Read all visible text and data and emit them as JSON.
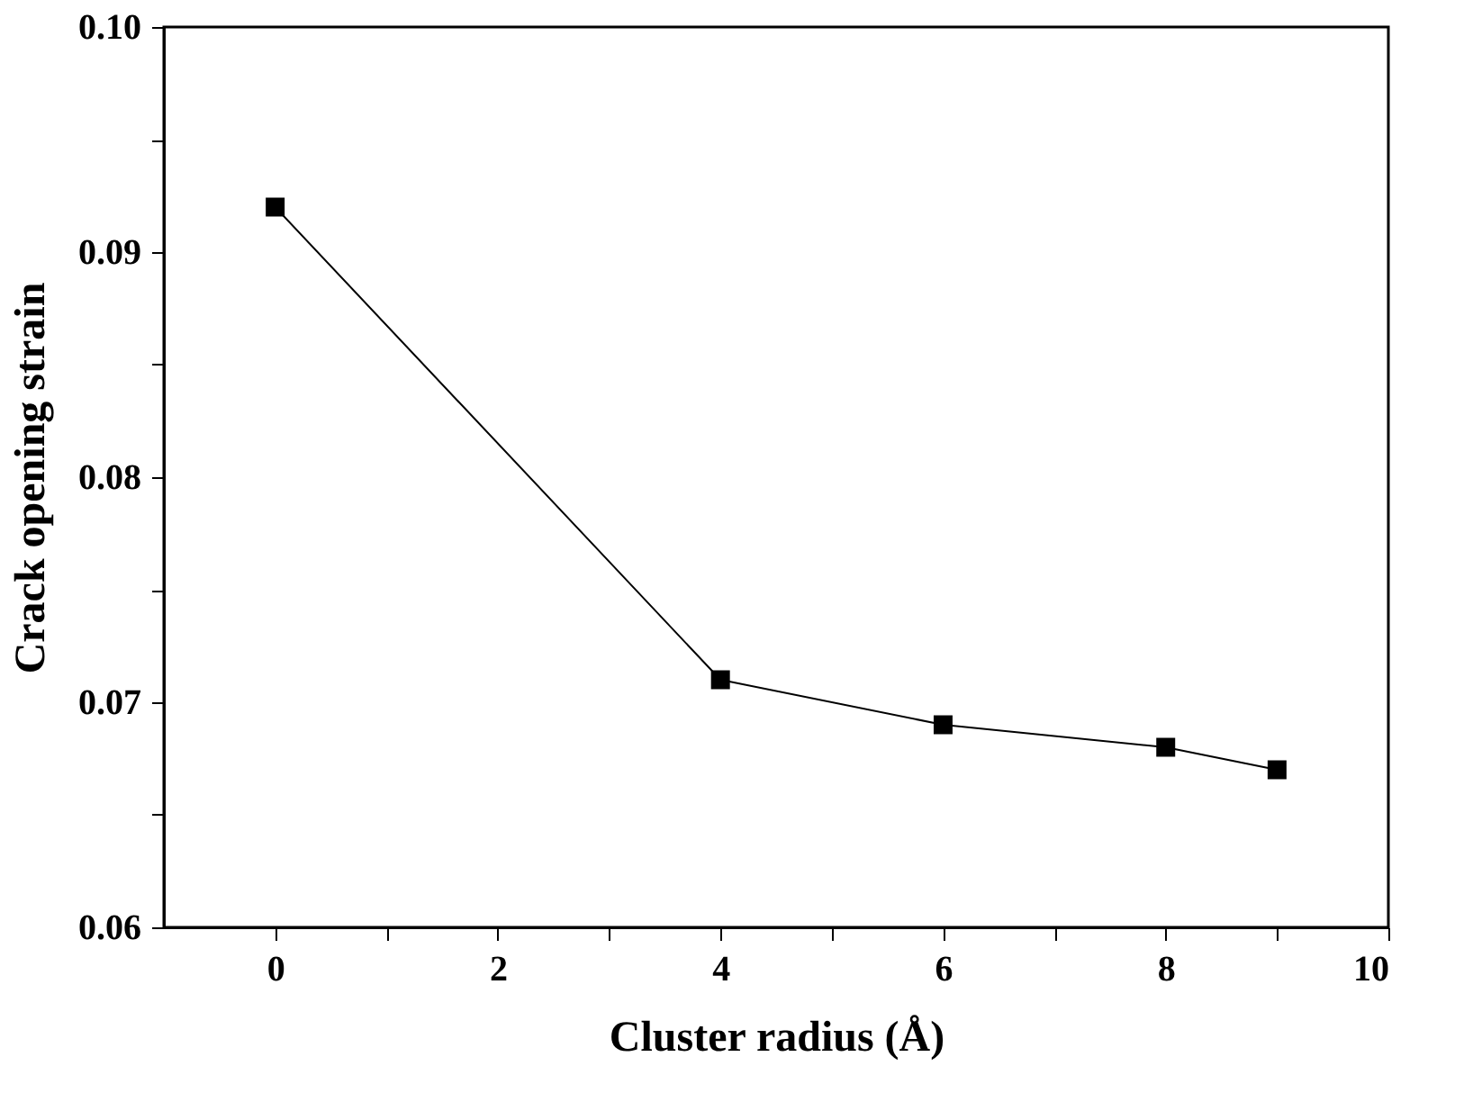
{
  "chart_data": {
    "type": "line",
    "xlabel": "Cluster radius (Å)",
    "ylabel": "Crack opening strain",
    "x": [
      0,
      4,
      6,
      8,
      9
    ],
    "series": [
      {
        "color": "#000000",
        "values": [
          0.092,
          0.071,
          0.069,
          0.068,
          0.067
        ]
      }
    ],
    "xlim": [
      -1,
      10
    ],
    "xticks": [
      0,
      {
        "value": 1,
        "label": null
      },
      2,
      {
        "value": 3,
        "label": null
      },
      4,
      {
        "value": 5,
        "label": null
      },
      6,
      {
        "value": 7,
        "label": null
      },
      8,
      {
        "value": 9,
        "label": null
      },
      10
    ],
    "ylim": [
      0.06,
      0.1
    ],
    "yticks": [
      0.06,
      {
        "value": 0.065,
        "label": null
      },
      0.07,
      {
        "value": 0.075,
        "label": null
      },
      0.08,
      {
        "value": 0.085,
        "label": null
      },
      0.09,
      {
        "value": 0.095,
        "label": null
      },
      {
        "value": 0.1,
        "label": "0.10"
      }
    ],
    "marker": "square",
    "line_style": "solid",
    "grid": false
  }
}
